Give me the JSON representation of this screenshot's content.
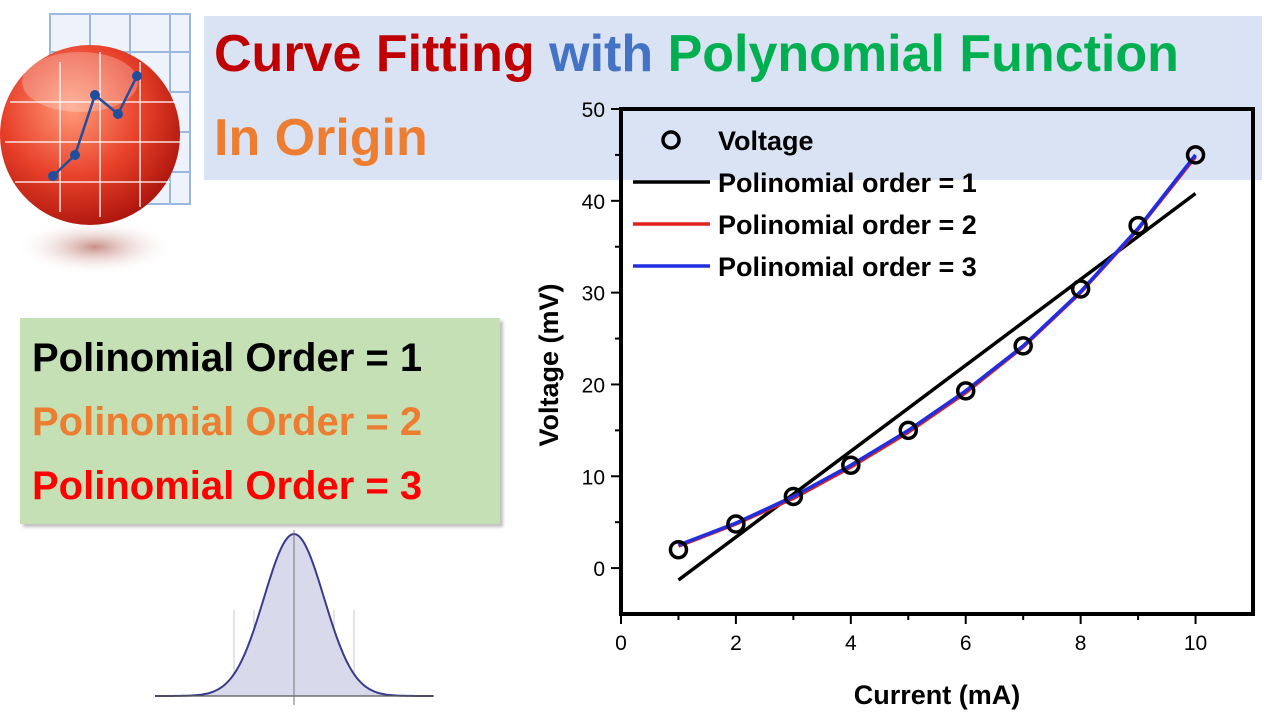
{
  "title": {
    "word1": "Curve Fitting",
    "word2": "with",
    "word3": "Polynomial Function",
    "line2": "In Origin",
    "colors": {
      "word1": "#c00000",
      "word2": "#4472c4",
      "word3": "#00b050",
      "line2": "#ed7d31"
    }
  },
  "orders": [
    {
      "label": "Polinomial Order = 1",
      "color": "#000000"
    },
    {
      "label": "Polinomial Order = 2",
      "color": "#ed7d31"
    },
    {
      "label": "Polinomial Order = 3",
      "color": "#ff0000"
    }
  ],
  "logo_icon": "origin-logo-icon",
  "gaussian_icon": "gaussian-curve-icon",
  "chart_data": {
    "type": "scatter",
    "xlabel": "Current (mA)",
    "ylabel": "Voltage (mV)",
    "xlim": [
      0,
      11
    ],
    "ylim": [
      -5,
      50
    ],
    "xticks": [
      0,
      2,
      4,
      6,
      8,
      10
    ],
    "yticks": [
      0,
      10,
      20,
      30,
      40,
      50
    ],
    "grid": false,
    "legend_position": "top-left",
    "x": [
      1,
      2,
      3,
      4,
      5,
      6,
      7,
      8,
      9,
      10
    ],
    "series": [
      {
        "name": "Voltage",
        "kind": "points",
        "color": "#000000",
        "values": [
          2,
          4.8,
          7.8,
          11.2,
          15,
          19.3,
          24.2,
          30.4,
          37.3,
          45
        ]
      },
      {
        "name": "Polinomial order = 1",
        "kind": "line",
        "color": "#000000",
        "x": [
          1,
          10
        ],
        "values": [
          -1.3,
          40.8
        ]
      },
      {
        "name": "Polinomial order = 2",
        "kind": "line",
        "color": "#e0201b",
        "values": [
          2.4,
          4.8,
          7.6,
          11.0,
          14.8,
          19.1,
          24.1,
          30.0,
          36.9,
          44.8
        ]
      },
      {
        "name": "Polinomial order = 3",
        "kind": "line",
        "color": "#1f2ee0",
        "values": [
          2.5,
          4.9,
          7.8,
          11.2,
          15.0,
          19.3,
          24.2,
          30.1,
          37.0,
          45.0
        ]
      }
    ]
  }
}
